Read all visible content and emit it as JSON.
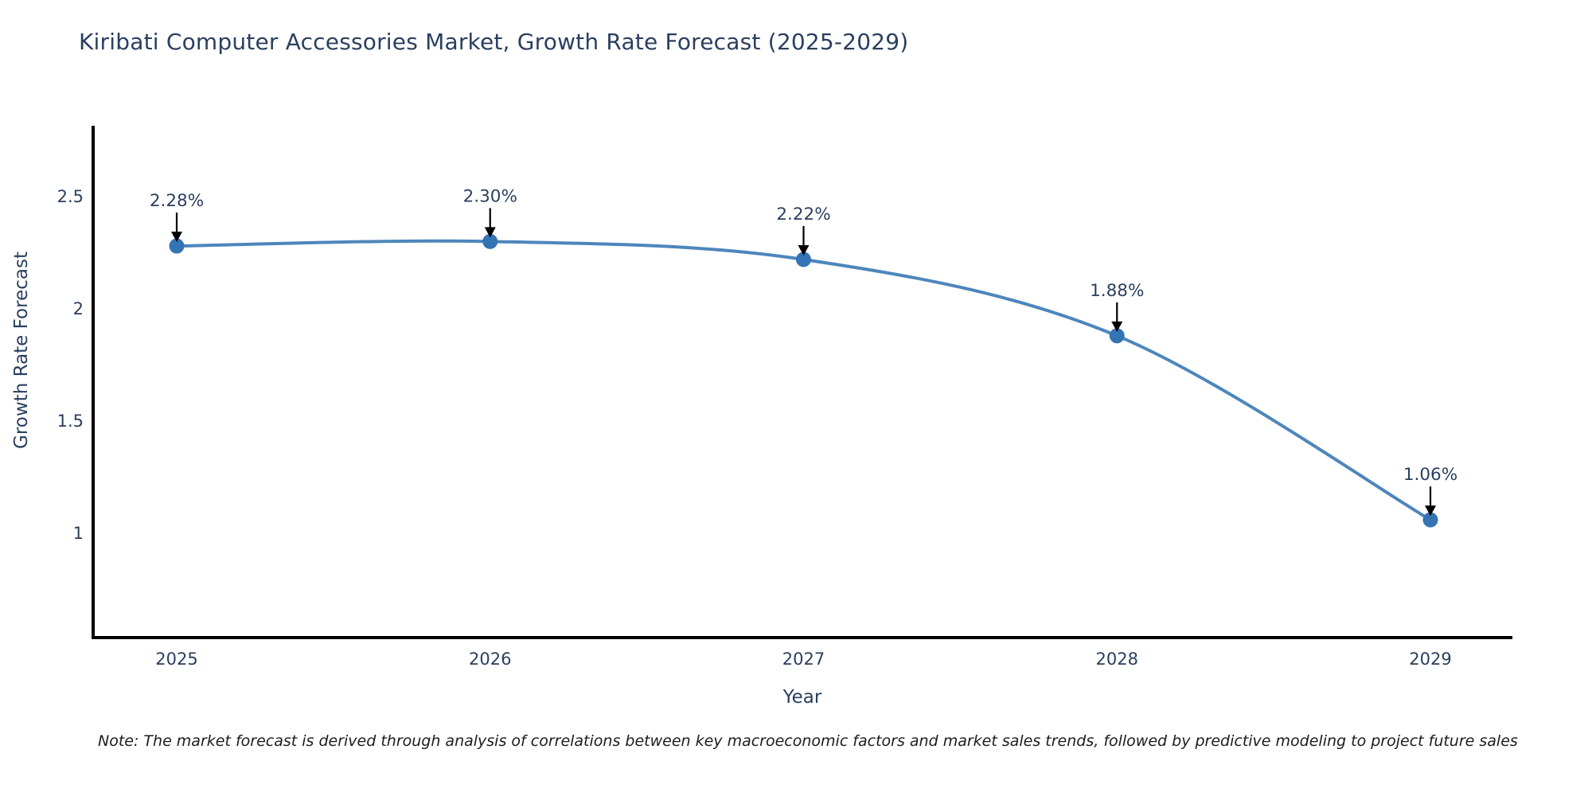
{
  "note": "Note: The market forecast is derived through analysis of correlations between key macroeconomic factors and market sales trends, followed by predictive modeling to project future sales",
  "chart_data": {
    "type": "line",
    "title": "Kiribati Computer Accessories Market, Growth Rate Forecast (2025-2029)",
    "categories": [
      "2025",
      "2026",
      "2027",
      "2028",
      "2029"
    ],
    "series": [
      {
        "name": "Growth Rate Forecast",
        "values": [
          2.28,
          2.3,
          2.22,
          1.88,
          1.06
        ]
      }
    ],
    "point_labels": [
      "2.28%",
      "2.30%",
      "2.22%",
      "1.88%",
      "1.06%"
    ],
    "xlabel": "Year",
    "ylabel": "Growth Rate Forecast",
    "y_ticks": [
      "1",
      "1.5",
      "2",
      "2.5"
    ],
    "y_tick_values": [
      1,
      1.5,
      2,
      2.5
    ],
    "ylim": [
      0.54,
      2.82
    ],
    "grid": false,
    "legend": "none",
    "curve": "spline",
    "line_color": "#4d86bb",
    "marker_color": "#3474b4",
    "axis_color": "#000000",
    "font_color": "#2a3f5f",
    "annotation_arrow_color": "#000000"
  }
}
